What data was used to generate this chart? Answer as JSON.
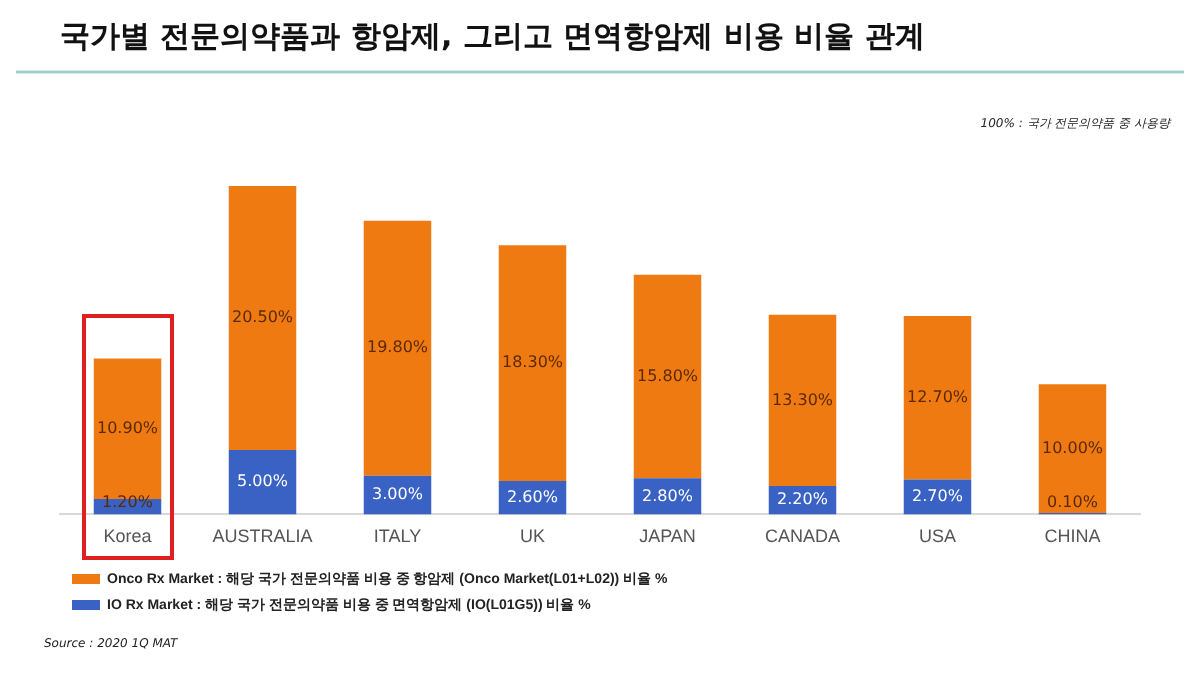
{
  "chart_data": {
    "type": "bar",
    "stacked": true,
    "title": "국가별 전문의약품과 항암제, 그리고 면역항암제 비용 비율 관계",
    "categories": [
      "Korea",
      "AUSTRALIA",
      "ITALY",
      "UK",
      "JAPAN",
      "CANADA",
      "USA",
      "CHINA"
    ],
    "series": [
      {
        "name": "IO Rx Market : 해당 국가 전문의약품 비용 중 면역항암제 (IO(L01G5)) 비율 %",
        "color": "#3a62c4",
        "values": [
          1.2,
          5.0,
          3.0,
          2.6,
          2.8,
          2.2,
          2.7,
          0.1
        ],
        "value_labels": [
          "1.20%",
          "5.00%",
          "3.00%",
          "2.60%",
          "2.80%",
          "2.20%",
          "2.70%",
          "0.10%"
        ]
      },
      {
        "name": "Onco Rx Market : 해당 국가 전문의약품 비용 중 항암제 (Onco Market(L01+L02)) 비율 %",
        "color": "#f07a12",
        "values": [
          10.9,
          20.5,
          19.8,
          18.3,
          15.8,
          13.3,
          12.7,
          10.0
        ],
        "value_labels": [
          "10.90%",
          "20.50%",
          "19.80%",
          "18.30%",
          "15.80%",
          "13.30%",
          "12.70%",
          "10.00%"
        ]
      }
    ],
    "legend": "bottom left",
    "grid": false,
    "tick_labels": "x",
    "annotations": [
      "100% : 국가 전문의약품 중 사용량",
      "Source : 2020 1Q MAT"
    ]
  }
}
